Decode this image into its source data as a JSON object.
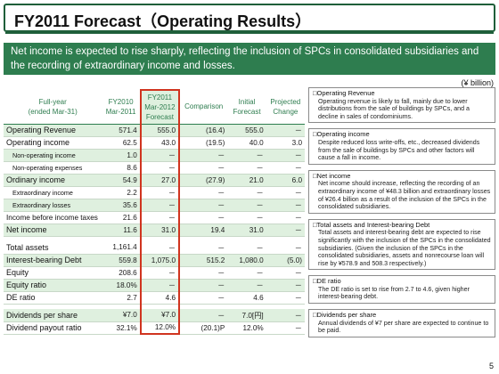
{
  "title": "FY2011 Forecast（Operating Results）",
  "banner": "Net income is expected to rise sharply, reflecting the inclusion of SPCs in consolidated subsidiaries and the recording of extraordinary income and losses.",
  "unit": "(¥ billion)",
  "table": {
    "headers": {
      "label": "Full-year\n(ended Mar-31)",
      "fy2010": "FY2010\nMar-2011",
      "fy2011": "FY2011\nMar-2012\nForecast",
      "comparison": "Comparison",
      "initial": "Initial\nForecast",
      "projected": "Projected\nChange"
    },
    "rows": [
      {
        "label": "Operating Revenue",
        "fy2010": "571.4",
        "fy2011": "555.0",
        "comparison": "(16.4)",
        "initial": "555.0",
        "projected": "－",
        "style": "big",
        "band": true
      },
      {
        "label": "Operating income",
        "fy2010": "62.5",
        "fy2011": "43.0",
        "comparison": "(19.5)",
        "initial": "40.0",
        "projected": "3.0",
        "style": "big",
        "band": false
      },
      {
        "label": "Non-operating income",
        "fy2010": "1.0",
        "fy2011": "－",
        "comparison": "－",
        "initial": "－",
        "projected": "－",
        "style": "sub",
        "band": true
      },
      {
        "label": "Non-operating expenses",
        "fy2010": "8.6",
        "fy2011": "－",
        "comparison": "－",
        "initial": "－",
        "projected": "－",
        "style": "sub",
        "band": false
      },
      {
        "label": "Ordinary income",
        "fy2010": "54.9",
        "fy2011": "27.0",
        "comparison": "(27.9)",
        "initial": "21.0",
        "projected": "6.0",
        "style": "big",
        "band": true
      },
      {
        "label": "Extraordinary income",
        "fy2010": "2.2",
        "fy2011": "－",
        "comparison": "－",
        "initial": "－",
        "projected": "－",
        "style": "sub",
        "band": false
      },
      {
        "label": "Extraordinary losses",
        "fy2010": "35.6",
        "fy2011": "－",
        "comparison": "－",
        "initial": "－",
        "projected": "－",
        "style": "sub",
        "band": true
      },
      {
        "label": "Income before income taxes",
        "fy2010": "21.6",
        "fy2011": "－",
        "comparison": "－",
        "initial": "－",
        "projected": "－",
        "style": "two",
        "band": false
      },
      {
        "label": "Net income",
        "fy2010": "11.6",
        "fy2011": "31.0",
        "comparison": "19.4",
        "initial": "31.0",
        "projected": "－",
        "style": "big",
        "band": true
      },
      {
        "gap": true
      },
      {
        "label": "Total assets",
        "fy2010": "1,161.4",
        "fy2011": "－",
        "comparison": "－",
        "initial": "－",
        "projected": "－",
        "style": "big",
        "band": false
      },
      {
        "label": "Interest-bearing Debt",
        "fy2010": "559.8",
        "fy2011": "1,075.0",
        "comparison": "515.2",
        "initial": "1,080.0",
        "projected": "(5.0)",
        "style": "big",
        "band": true
      },
      {
        "label": "Equity",
        "fy2010": "208.6",
        "fy2011": "－",
        "comparison": "－",
        "initial": "－",
        "projected": "－",
        "style": "big",
        "band": false
      },
      {
        "label": "Equity ratio",
        "fy2010": "18.0%",
        "fy2011": "－",
        "comparison": "－",
        "initial": "－",
        "projected": "－",
        "style": "big",
        "band": true
      },
      {
        "label": "DE ratio",
        "fy2010": "2.7",
        "fy2011": "4.6",
        "comparison": "－",
        "initial": "4.6",
        "projected": "－",
        "style": "big",
        "band": false
      },
      {
        "gap": true
      },
      {
        "label": "Dividends per share",
        "fy2010": "¥7.0",
        "fy2011": "¥7.0",
        "comparison": "－",
        "initial": "7.0[円]",
        "projected": "－",
        "style": "big",
        "band": true
      },
      {
        "label": "Dividend payout ratio",
        "fy2010": "32.1%",
        "fy2011": "12.0%",
        "comparison": "(20.1)P",
        "initial": "12.0%",
        "projected": "－",
        "style": "big",
        "band": false
      }
    ]
  },
  "notes": [
    {
      "title": "□Operating Revenue",
      "body": "Operating revenue is likely to fall, mainly due to lower distributions from the sale of buildings by SPCs, and a decline in sales of condominiums."
    },
    {
      "title": "□Operating income",
      "body": "Despite reduced loss write-offs, etc., decreased dividends from the sale of buildings by SPCs and other factors will cause a fall in income."
    },
    {
      "title": "□Net income",
      "body": "Net income should increase, reflecting the recording of an extraordinary income of ¥48.3 billion and extraordinary losses of ¥26.4 billion as a result of the inclusion of the SPCs in the consolidated subsidiaries."
    },
    {
      "title": "□Total assets and Interest-bearing Debt",
      "body": "Total assets and interest-bearing debt are expected to rise significantly with the inclusion of the SPCs in the consolidated subsidiaries. (Given the inclusion of the SPCs in the consolidated subsidiaries, assets and nonrecourse loan will rise by ¥578.9 and 508.3 respectively.)"
    },
    {
      "title": "□DE ratio",
      "body": "The DE ratio is set to rise from 2.7 to 4.6, given higher interest-bearing debt."
    },
    {
      "title": "□Dividends per share",
      "body": "Annual dividends of ¥7 per share are expected to continue to be paid."
    }
  ],
  "page_number": "5"
}
